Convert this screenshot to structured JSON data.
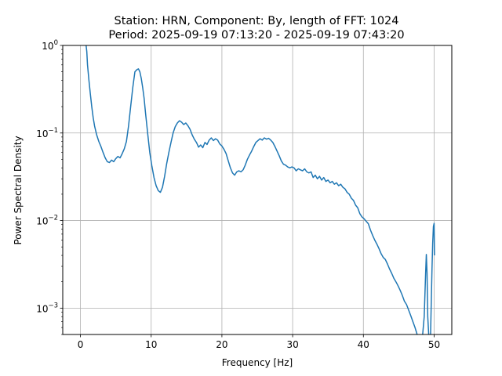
{
  "chart_data": {
    "type": "line",
    "title": "Station: HRN, Component: By, length of FFT: 1024",
    "subtitle": "Period: 2025-09-19 07:13:20 - 2025-09-19 07:43:20",
    "xlabel": "Frequency [Hz]",
    "ylabel": "Power Spectral Density",
    "xscale": "linear",
    "yscale": "log",
    "xlim": [
      -2.5,
      52.5
    ],
    "ylim": [
      0.0005,
      1.0
    ],
    "grid": true,
    "x_ticks": [
      {
        "value": 0,
        "label": "0"
      },
      {
        "value": 10,
        "label": "10"
      },
      {
        "value": 20,
        "label": "20"
      },
      {
        "value": 30,
        "label": "30"
      },
      {
        "value": 40,
        "label": "40"
      },
      {
        "value": 50,
        "label": "50"
      }
    ],
    "y_ticks": [
      {
        "value": 1.0,
        "base": "10",
        "exp": "0"
      },
      {
        "value": 0.1,
        "base": "10",
        "exp": "−1"
      },
      {
        "value": 0.01,
        "base": "10",
        "exp": "−2"
      },
      {
        "value": 0.001,
        "base": "10",
        "exp": "−3"
      }
    ],
    "series": [
      {
        "color": "#1f77b4",
        "points": [
          [
            0.8,
            1.0
          ],
          [
            0.9,
            0.85
          ],
          [
            1.0,
            0.6
          ],
          [
            1.2,
            0.4
          ],
          [
            1.4,
            0.28
          ],
          [
            1.6,
            0.2
          ],
          [
            1.8,
            0.15
          ],
          [
            2.0,
            0.12
          ],
          [
            2.3,
            0.095
          ],
          [
            2.6,
            0.08
          ],
          [
            2.9,
            0.07
          ],
          [
            3.2,
            0.06
          ],
          [
            3.5,
            0.052
          ],
          [
            3.8,
            0.047
          ],
          [
            4.1,
            0.046
          ],
          [
            4.4,
            0.049
          ],
          [
            4.7,
            0.047
          ],
          [
            5.0,
            0.051
          ],
          [
            5.3,
            0.054
          ],
          [
            5.6,
            0.052
          ],
          [
            5.9,
            0.058
          ],
          [
            6.2,
            0.066
          ],
          [
            6.5,
            0.08
          ],
          [
            6.8,
            0.12
          ],
          [
            7.1,
            0.2
          ],
          [
            7.4,
            0.33
          ],
          [
            7.7,
            0.5
          ],
          [
            8.0,
            0.53
          ],
          [
            8.2,
            0.54
          ],
          [
            8.4,
            0.5
          ],
          [
            8.6,
            0.42
          ],
          [
            8.8,
            0.33
          ],
          [
            9.0,
            0.25
          ],
          [
            9.2,
            0.17
          ],
          [
            9.5,
            0.1
          ],
          [
            9.8,
            0.06
          ],
          [
            10.1,
            0.042
          ],
          [
            10.4,
            0.031
          ],
          [
            10.7,
            0.025
          ],
          [
            11.0,
            0.022
          ],
          [
            11.3,
            0.021
          ],
          [
            11.6,
            0.024
          ],
          [
            11.9,
            0.032
          ],
          [
            12.2,
            0.045
          ],
          [
            12.5,
            0.06
          ],
          [
            12.8,
            0.078
          ],
          [
            13.1,
            0.1
          ],
          [
            13.4,
            0.118
          ],
          [
            13.7,
            0.13
          ],
          [
            14.0,
            0.138
          ],
          [
            14.3,
            0.133
          ],
          [
            14.6,
            0.125
          ],
          [
            14.9,
            0.13
          ],
          [
            15.2,
            0.121
          ],
          [
            15.5,
            0.11
          ],
          [
            15.8,
            0.095
          ],
          [
            16.1,
            0.085
          ],
          [
            16.4,
            0.078
          ],
          [
            16.7,
            0.069
          ],
          [
            17.0,
            0.073
          ],
          [
            17.3,
            0.068
          ],
          [
            17.6,
            0.078
          ],
          [
            17.9,
            0.074
          ],
          [
            18.2,
            0.083
          ],
          [
            18.5,
            0.088
          ],
          [
            18.8,
            0.082
          ],
          [
            19.1,
            0.086
          ],
          [
            19.4,
            0.083
          ],
          [
            19.7,
            0.075
          ],
          [
            20.0,
            0.071
          ],
          [
            20.3,
            0.065
          ],
          [
            20.6,
            0.058
          ],
          [
            20.9,
            0.048
          ],
          [
            21.2,
            0.04
          ],
          [
            21.5,
            0.035
          ],
          [
            21.8,
            0.033
          ],
          [
            22.1,
            0.036
          ],
          [
            22.4,
            0.037
          ],
          [
            22.7,
            0.036
          ],
          [
            23.0,
            0.038
          ],
          [
            23.3,
            0.043
          ],
          [
            23.6,
            0.05
          ],
          [
            23.9,
            0.056
          ],
          [
            24.2,
            0.062
          ],
          [
            24.5,
            0.07
          ],
          [
            24.8,
            0.078
          ],
          [
            25.1,
            0.082
          ],
          [
            25.4,
            0.086
          ],
          [
            25.7,
            0.083
          ],
          [
            26.0,
            0.088
          ],
          [
            26.3,
            0.085
          ],
          [
            26.6,
            0.087
          ],
          [
            26.9,
            0.083
          ],
          [
            27.2,
            0.078
          ],
          [
            27.5,
            0.07
          ],
          [
            27.8,
            0.062
          ],
          [
            28.1,
            0.055
          ],
          [
            28.4,
            0.048
          ],
          [
            28.7,
            0.044
          ],
          [
            29.0,
            0.043
          ],
          [
            29.3,
            0.041
          ],
          [
            29.6,
            0.04
          ],
          [
            29.9,
            0.041
          ],
          [
            30.2,
            0.04
          ],
          [
            30.5,
            0.037
          ],
          [
            30.8,
            0.039
          ],
          [
            31.1,
            0.038
          ],
          [
            31.4,
            0.037
          ],
          [
            31.7,
            0.039
          ],
          [
            32.0,
            0.036
          ],
          [
            32.3,
            0.035
          ],
          [
            32.6,
            0.036
          ],
          [
            32.9,
            0.031
          ],
          [
            33.2,
            0.033
          ],
          [
            33.5,
            0.03
          ],
          [
            33.8,
            0.032
          ],
          [
            34.1,
            0.029
          ],
          [
            34.4,
            0.031
          ],
          [
            34.7,
            0.028
          ],
          [
            35.0,
            0.029
          ],
          [
            35.3,
            0.027
          ],
          [
            35.6,
            0.028
          ],
          [
            35.9,
            0.026
          ],
          [
            36.2,
            0.027
          ],
          [
            36.5,
            0.025
          ],
          [
            36.8,
            0.026
          ],
          [
            37.1,
            0.024
          ],
          [
            37.4,
            0.023
          ],
          [
            37.7,
            0.021
          ],
          [
            38.0,
            0.02
          ],
          [
            38.3,
            0.018
          ],
          [
            38.6,
            0.017
          ],
          [
            38.9,
            0.015
          ],
          [
            39.2,
            0.014
          ],
          [
            39.5,
            0.012
          ],
          [
            39.8,
            0.011
          ],
          [
            40.1,
            0.0105
          ],
          [
            40.4,
            0.0098
          ],
          [
            40.7,
            0.0092
          ],
          [
            41.0,
            0.0078
          ],
          [
            41.3,
            0.0068
          ],
          [
            41.6,
            0.006
          ],
          [
            41.9,
            0.0054
          ],
          [
            42.2,
            0.0048
          ],
          [
            42.5,
            0.0042
          ],
          [
            42.8,
            0.0038
          ],
          [
            43.1,
            0.0036
          ],
          [
            43.4,
            0.0032
          ],
          [
            43.7,
            0.0028
          ],
          [
            44.0,
            0.0025
          ],
          [
            44.3,
            0.0022
          ],
          [
            44.6,
            0.002
          ],
          [
            44.9,
            0.0018
          ],
          [
            45.2,
            0.0016
          ],
          [
            45.5,
            0.0014
          ],
          [
            45.8,
            0.0012
          ],
          [
            46.1,
            0.0011
          ],
          [
            46.4,
            0.00095
          ],
          [
            46.7,
            0.00082
          ],
          [
            47.0,
            0.0007
          ],
          [
            47.3,
            0.0006
          ],
          [
            47.6,
            0.0005
          ],
          [
            48.0,
            0.00045
          ],
          [
            48.3,
            0.00042
          ],
          [
            48.6,
            0.0008
          ],
          [
            48.8,
            0.0025
          ],
          [
            48.9,
            0.0041
          ],
          [
            49.0,
            0.0025
          ],
          [
            49.1,
            0.0008
          ],
          [
            49.3,
            0.0004
          ],
          [
            49.5,
            0.0005
          ],
          [
            49.6,
            0.0012
          ],
          [
            49.7,
            0.0028
          ],
          [
            49.8,
            0.0055
          ],
          [
            49.9,
            0.0085
          ],
          [
            50.0,
            0.0093
          ],
          [
            50.05,
            0.004
          ]
        ]
      }
    ]
  }
}
